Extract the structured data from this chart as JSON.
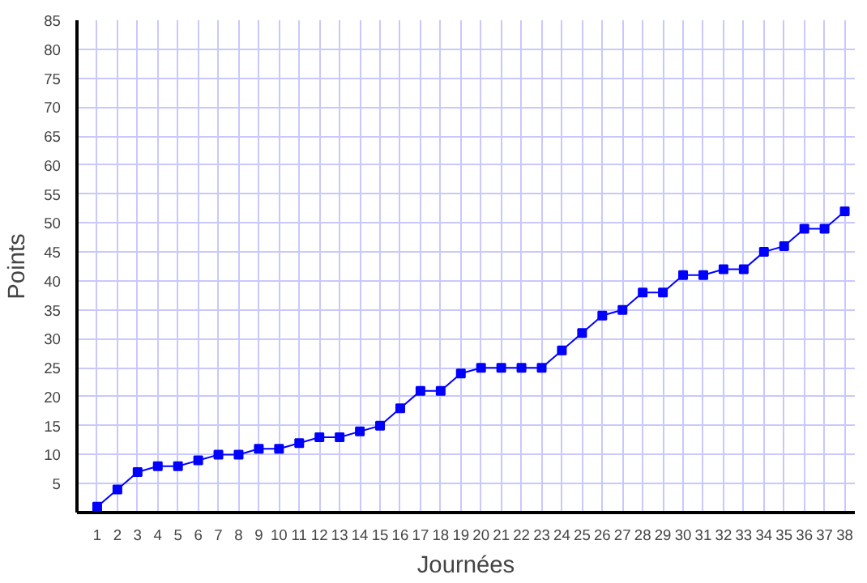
{
  "chart_data": {
    "type": "line",
    "xlabel": "Journées",
    "ylabel": "Points",
    "x": [
      1,
      2,
      3,
      4,
      5,
      6,
      7,
      8,
      9,
      10,
      11,
      12,
      13,
      14,
      15,
      16,
      17,
      18,
      19,
      20,
      21,
      22,
      23,
      24,
      25,
      26,
      27,
      28,
      29,
      30,
      31,
      32,
      33,
      34,
      35,
      36,
      37,
      38
    ],
    "series": [
      {
        "color": "#0000ff",
        "values": [
          1,
          4,
          7,
          8,
          8,
          9,
          10,
          10,
          11,
          11,
          12,
          13,
          13,
          14,
          15,
          18,
          21,
          21,
          24,
          25,
          25,
          25,
          25,
          28,
          31,
          34,
          35,
          38,
          38,
          41,
          41,
          42,
          42,
          45,
          46,
          49,
          49,
          52
        ]
      }
    ],
    "xlim": [
      0,
      38.5
    ],
    "ylim": [
      0,
      85
    ],
    "xticks": [
      1,
      2,
      3,
      4,
      5,
      6,
      7,
      8,
      9,
      10,
      11,
      12,
      13,
      14,
      15,
      16,
      17,
      18,
      19,
      20,
      21,
      22,
      23,
      24,
      25,
      26,
      27,
      28,
      29,
      30,
      31,
      32,
      33,
      34,
      35,
      36,
      37,
      38
    ],
    "yticks": [
      5,
      10,
      15,
      20,
      25,
      30,
      35,
      40,
      45,
      50,
      55,
      60,
      65,
      70,
      75,
      80,
      85
    ],
    "grid": true,
    "marker": "square",
    "line_style": "solid"
  }
}
